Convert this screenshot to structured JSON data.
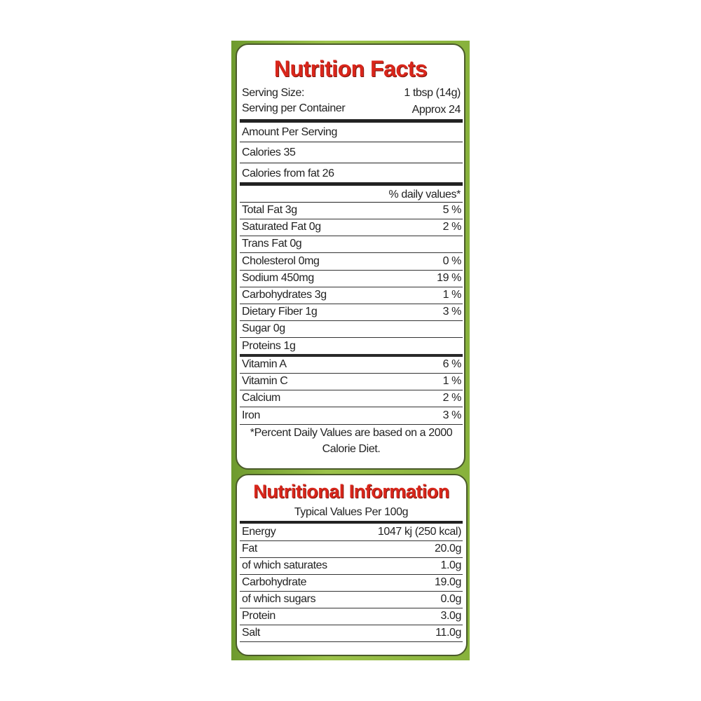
{
  "nutrition_facts": {
    "title": "Nutrition Facts",
    "serving": [
      {
        "label": "Serving Size:",
        "value": "1 tbsp (14g)"
      },
      {
        "label": "Serving per Container",
        "value": "Approx 24"
      }
    ],
    "amount_per_serving": "Amount Per Serving",
    "calories": "Calories 35",
    "calories_from_fat": "Calories from fat 26",
    "daily_values_header": "% daily values*",
    "nutrients": [
      {
        "label": "Total Fat 3g",
        "value": "5 %"
      },
      {
        "label": "Saturated Fat 0g",
        "value": "2 %"
      },
      {
        "label": "Trans Fat 0g"
      },
      {
        "label": "Cholesterol 0mg",
        "value": "0 %"
      },
      {
        "label": "Sodium 450mg",
        "value": "19 %"
      },
      {
        "label": "Carbohydrates 3g",
        "value": "1 %"
      },
      {
        "label": "Dietary Fiber 1g",
        "value": "3 %"
      },
      {
        "label": "Sugar 0g"
      },
      {
        "label": "Proteins 1g"
      }
    ],
    "vitamins": [
      {
        "label": "Vitamin A",
        "value": "6 %"
      },
      {
        "label": "Vitamin C",
        "value": "1 %"
      },
      {
        "label": "Calcium",
        "value": "2 %"
      },
      {
        "label": "Iron",
        "value": "3 %"
      }
    ],
    "footnote": "*Percent Daily Values are based on a 2000 Calorie Diet."
  },
  "nutritional_information": {
    "title": "Nutritional Information",
    "subtitle": "Typical Values Per 100g",
    "rows": [
      {
        "label": "Energy",
        "value": "1047 kj (250 kcal)"
      },
      {
        "label": "Fat",
        "value": "20.0g"
      },
      {
        "label": "of which saturates",
        "value": "1.0g"
      },
      {
        "label": "Carbohydrate",
        "value": "19.0g"
      },
      {
        "label": "of which sugars",
        "value": "0.0g"
      },
      {
        "label": "Protein",
        "value": "3.0g"
      },
      {
        "label": "Salt",
        "value": "11.0g"
      }
    ]
  }
}
